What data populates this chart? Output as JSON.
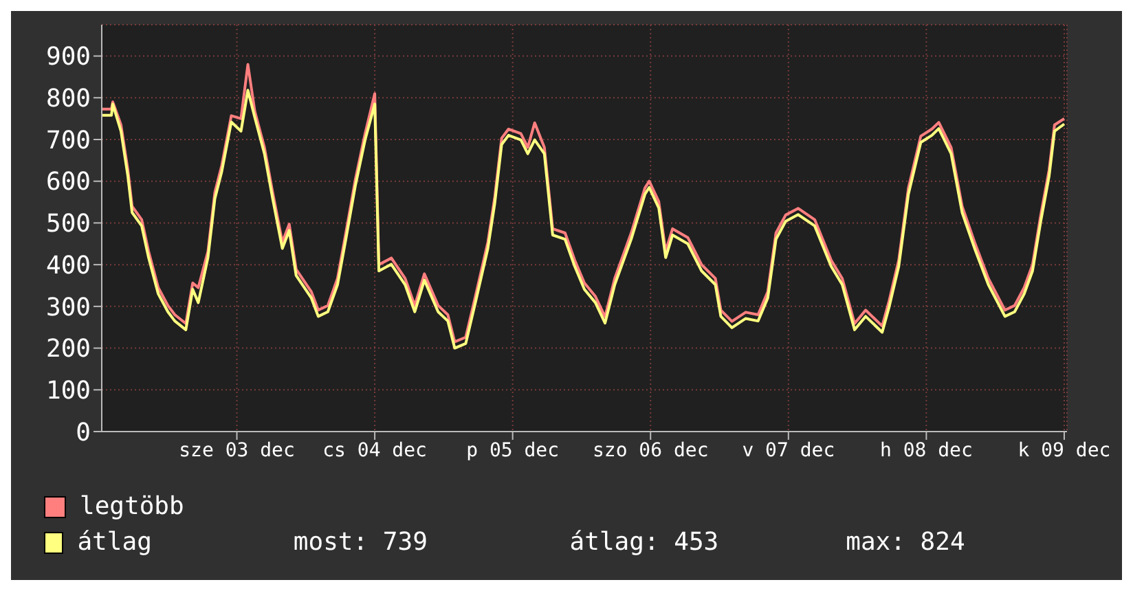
{
  "chart_data": {
    "type": "line",
    "x": [
      "--12-02T12:29",
      "--12-02T14:10",
      "--12-02T14:24",
      "--12-02T15:50",
      "--12-02T17:02",
      "--12-02T17:46",
      "--12-02T19:26",
      "--12-02T20:38",
      "--12-02T22:19",
      "--12-03T00:00",
      "--12-03T01:12",
      "--12-03T03:07",
      "--12-03T04:19",
      "--12-03T05:17",
      "--12-03T06:58",
      "--12-03T08:10",
      "--12-03T09:22",
      "--12-03T11:02",
      "--12-03T12:43",
      "--12-03T13:55",
      "--12-03T15:07",
      "--12-03T16:48",
      "--12-03T18:14",
      "--12-03T19:55",
      "--12-03T21:07",
      "--12-03T22:19",
      "--12-04T00:58",
      "--12-04T02:10",
      "--12-04T03:50",
      "--12-04T05:31",
      "--12-04T06:58",
      "--12-04T08:38",
      "--12-04T10:19",
      "--12-04T12:00",
      "--12-04T12:43",
      "--12-04T14:53",
      "--12-04T17:17",
      "--12-04T18:58",
      "--12-04T20:38",
      "--12-04T23:02",
      "--12-05T00:43",
      "--12-05T01:55",
      "--12-05T03:50",
      "--12-05T05:31",
      "--12-05T07:41",
      "--12-05T08:53",
      "--12-05T10:05",
      "--12-05T11:17",
      "--12-05T13:26",
      "--12-05T14:38",
      "--12-05T15:50",
      "--12-05T17:31",
      "--12-05T18:58",
      "--12-05T21:07",
      "--12-05T22:48",
      "--12-06T00:29",
      "--12-06T02:24",
      "--12-06T04:05",
      "--12-06T05:46",
      "--12-06T08:38",
      "--12-06T11:02",
      "--12-06T11:46",
      "--12-06T13:26",
      "--12-06T14:38",
      "--12-06T15:50",
      "--12-06T18:29",
      "--12-06T20:53",
      "--12-06T23:17",
      "--12-07T00:14",
      "--12-07T02:10",
      "--12-07T04:34",
      "--12-07T06:43",
      "--12-07T08:24",
      "--12-07T09:50",
      "--12-07T11:31",
      "--12-07T13:41",
      "--12-07T16:34",
      "--12-07T19:26",
      "--12-07T21:22",
      "--12-07T23:31",
      "--12-08T01:26",
      "--12-08T04:19",
      "--12-08T05:31",
      "--12-08T07:12",
      "--12-08T08:53",
      "--12-08T11:02",
      "--12-08T12:58",
      "--12-08T14:10",
      "--12-08T16:19",
      "--12-08T18:14",
      "--12-08T20:24",
      "--12-08T22:48",
      "--12-09T01:41",
      "--12-09T03:22",
      "--12-09T05:02",
      "--12-09T06:29",
      "--12-09T07:55",
      "--12-09T09:22",
      "--12-09T10:19",
      "--12-09T12:00"
    ],
    "series": [
      {
        "name": "legtöbb",
        "color": "#ff7f7f",
        "values": [
          773,
          773,
          790,
          735,
          627,
          540,
          508,
          432,
          345,
          302,
          280,
          259,
          356,
          345,
          432,
          573,
          638,
          757,
          750,
          880,
          768,
          681,
          573,
          454,
          497,
          389,
          335,
          291,
          302,
          367,
          476,
          605,
          714,
          810,
          400,
          416,
          367,
          302,
          378,
          302,
          280,
          215,
          226,
          324,
          454,
          562,
          703,
          725,
          714,
          681,
          740,
          681,
          486,
          476,
          411,
          356,
          324,
          275,
          367,
          476,
          584,
          600,
          551,
          432,
          486,
          465,
          400,
          367,
          291,
          264,
          286,
          280,
          335,
          476,
          519,
          535,
          508,
          411,
          367,
          259,
          291,
          253,
          313,
          411,
          584,
          708,
          725,
          741,
          681,
          540,
          454,
          367,
          291,
          302,
          345,
          400,
          519,
          627,
          735,
          750
        ]
      },
      {
        "name": "átlag",
        "color": "#ffff80",
        "values": [
          758,
          758,
          785,
          720,
          612,
          525,
          493,
          417,
          330,
          287,
          265,
          244,
          341,
          309,
          417,
          558,
          623,
          742,
          720,
          818,
          753,
          666,
          558,
          439,
          482,
          374,
          320,
          276,
          287,
          352,
          461,
          590,
          699,
          785,
          385,
          401,
          352,
          287,
          363,
          287,
          265,
          200,
          211,
          309,
          439,
          547,
          688,
          710,
          699,
          666,
          699,
          666,
          471,
          461,
          396,
          341,
          309,
          260,
          352,
          461,
          569,
          585,
          536,
          417,
          471,
          450,
          385,
          352,
          276,
          249,
          271,
          265,
          320,
          461,
          504,
          520,
          493,
          396,
          352,
          244,
          276,
          238,
          298,
          396,
          569,
          693,
          710,
          726,
          666,
          525,
          439,
          352,
          276,
          287,
          330,
          385,
          504,
          612,
          720,
          737
        ]
      }
    ],
    "xlim": [
      "--12-02T12:29",
      "--12-09T12:29"
    ],
    "xticks": [
      {
        "value": "--12-03T12:00",
        "label": "sze 03 dec"
      },
      {
        "value": "--12-04T12:00",
        "label": "cs 04 dec"
      },
      {
        "value": "--12-05T12:00",
        "label": "p 05 dec"
      },
      {
        "value": "--12-06T12:00",
        "label": "szo 06 dec"
      },
      {
        "value": "--12-07T12:00",
        "label": "v 07 dec"
      },
      {
        "value": "--12-08T12:00",
        "label": "h 08 dec"
      },
      {
        "value": "--12-09T12:00",
        "label": "k 09 dec"
      }
    ],
    "ylim": [
      0,
      975
    ],
    "yticks": [
      0,
      100,
      200,
      300,
      400,
      500,
      600,
      700,
      800,
      900
    ],
    "grid": true,
    "legend": "bottom",
    "annotations": [
      "most: 739",
      "átlag: 453",
      "max: 824"
    ]
  }
}
